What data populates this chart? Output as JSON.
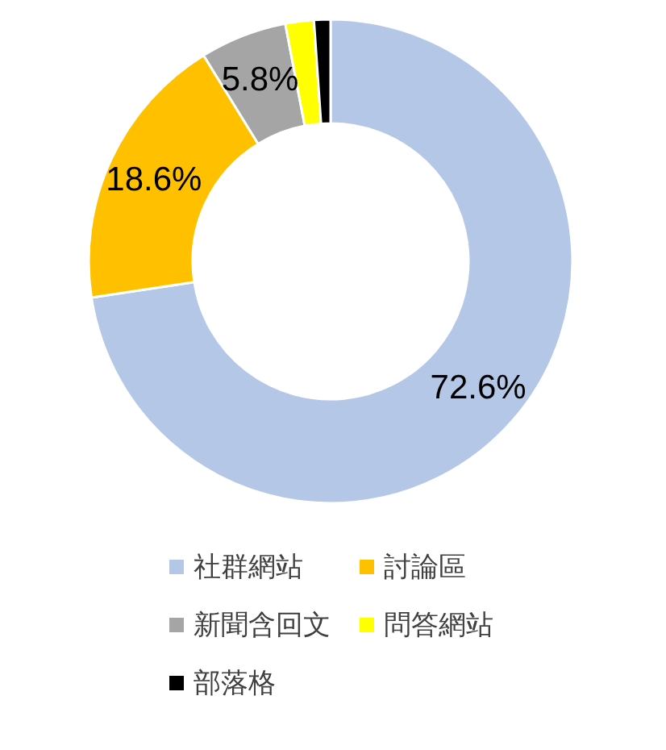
{
  "chart_data": {
    "type": "donut",
    "categories": [
      "社群網站",
      "討論區",
      "新聞含回文",
      "問答網站",
      "部落格"
    ],
    "values": [
      72.6,
      18.6,
      5.8,
      1.9,
      1.1
    ],
    "colors": [
      "#b4c7e7",
      "#ffc000",
      "#a5a5a5",
      "#ffff00",
      "#000000"
    ],
    "value_labels": [
      "72.6%",
      "18.6%",
      "5.8%",
      null,
      null
    ],
    "legend": "bottom"
  }
}
